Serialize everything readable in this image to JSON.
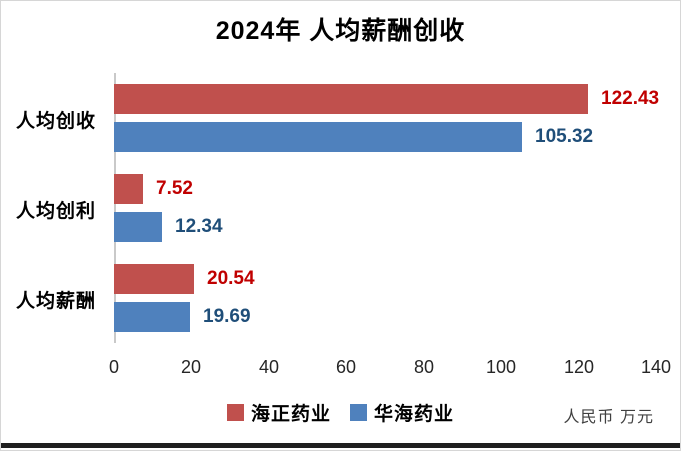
{
  "chart_data": {
    "type": "bar",
    "orientation": "horizontal",
    "title": "2024年 人均薪酬创收",
    "categories": [
      "人均创收",
      "人均创利",
      "人均薪酬"
    ],
    "series": [
      {
        "name": "海正药业",
        "bar_color": "#C0504D",
        "label_color": "#C00000",
        "values": [
          122.43,
          7.52,
          20.54
        ]
      },
      {
        "name": "华海药业",
        "bar_color": "#4F81BD",
        "label_color": "#1F4E79",
        "values": [
          105.32,
          12.34,
          19.69
        ]
      }
    ],
    "value_labels": [
      [
        "122.43",
        "7.52",
        "20.54"
      ],
      [
        "105.32",
        "12.34",
        "19.69"
      ]
    ],
    "xlim": [
      0,
      140
    ],
    "x_ticks": [
      "0",
      "20",
      "40",
      "60",
      "80",
      "100",
      "120",
      "140"
    ],
    "grid": false,
    "legend_position": "bottom",
    "unit_note": "人民币 万元",
    "axis_line_color": "#c9c9c9",
    "tick_text_color": "#262626",
    "background": "#ffffff"
  }
}
